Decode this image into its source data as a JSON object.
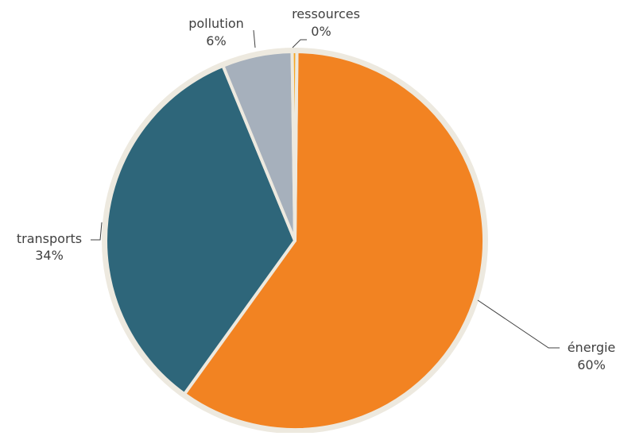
{
  "chart_data": {
    "type": "pie",
    "title": "",
    "slices": [
      {
        "label": "énergie",
        "value": 60,
        "percent_label": "60%",
        "color": "#F28322"
      },
      {
        "label": "transports",
        "value": 34,
        "percent_label": "34%",
        "color": "#2E667A"
      },
      {
        "label": "pollution",
        "value": 6,
        "percent_label": "6%",
        "color": "#A6B0BC"
      },
      {
        "label": "ressources",
        "value": 0.4,
        "percent_label": "0%",
        "color": "#F5A623"
      }
    ],
    "slice_order": "clockwise from top",
    "legend": "none",
    "data_labels": "outside with leader lines",
    "border_color": "#EDE9DF"
  }
}
